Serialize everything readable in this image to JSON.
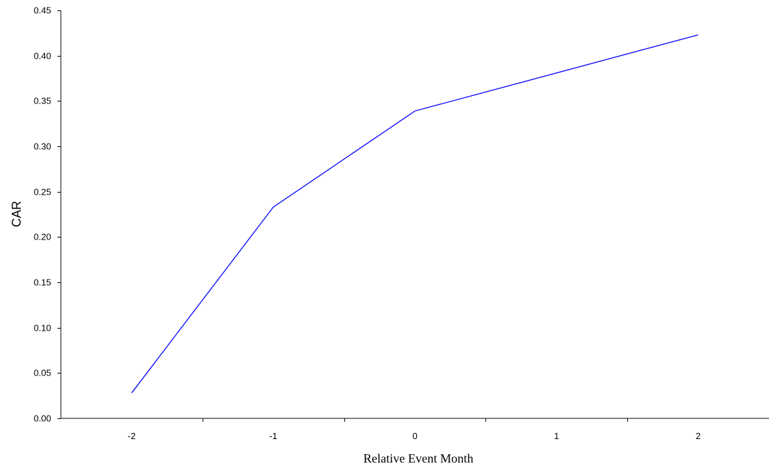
{
  "chart_data": {
    "type": "line",
    "xlabel": "Relative Event Month",
    "ylabel": "CAR",
    "x": [
      -2,
      -1,
      0,
      1,
      2
    ],
    "x_tick_labels": [
      "-2",
      "-1",
      "0",
      "1",
      "2"
    ],
    "series": [
      {
        "values": [
          0.028,
          0.233,
          0.339,
          0.38,
          0.423
        ],
        "x": [
          -2,
          -1,
          0,
          1,
          2
        ]
      }
    ],
    "series_plot": [
      {
        "x": [
          -2,
          -1,
          0,
          2
        ],
        "y": [
          0.028,
          0.233,
          0.339,
          0.423
        ]
      }
    ],
    "xlim": [
      -2.5,
      2.5
    ],
    "ylim": [
      0.0,
      0.45
    ],
    "y_ticks": [
      0.0,
      0.05,
      0.1,
      0.15,
      0.2,
      0.25,
      0.3,
      0.35,
      0.4,
      0.45
    ],
    "y_tick_labels": [
      "0.00",
      "0.05",
      "0.10",
      "0.15",
      "0.20",
      "0.25",
      "0.30",
      "0.35",
      "0.40",
      "0.45"
    ],
    "grid": false,
    "legend": "none",
    "line_color": "#0000ff",
    "axis_color": "#000000"
  }
}
